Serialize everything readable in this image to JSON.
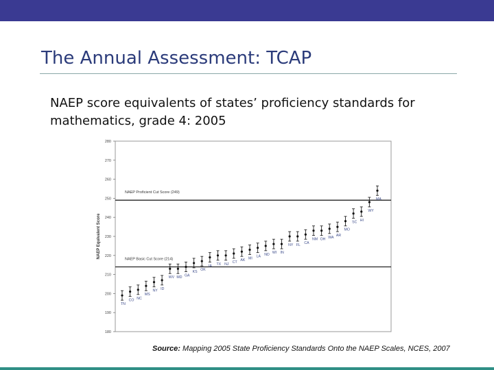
{
  "slide": {
    "title": "The Annual Assessment: TCAP",
    "subtitle": "NAEP score equivalents of states’ proficiency standards for mathematics, grade 4: 2005",
    "source_label": "Source:",
    "source_text": " Mapping 2005 State Proficiency Standards Onto the NAEP Scales, NCES, 2007"
  },
  "colors": {
    "top_bar": "#3a3a92",
    "bottom_bar": "#2f8f85",
    "title": "#2b3b7a"
  },
  "chart_data": {
    "type": "scatter",
    "title": "",
    "xlabel": "",
    "ylabel": "NAEP Equivalent Score",
    "ylim": [
      180,
      280
    ],
    "yticks": [
      180,
      190,
      200,
      210,
      220,
      230,
      240,
      250,
      260,
      270,
      280
    ],
    "grid": false,
    "reference_lines": [
      {
        "label": "NAEP Proficient Cut Score (249)",
        "value": 249
      },
      {
        "label": "NAEP Basic Cut Score (214)",
        "value": 214
      }
    ],
    "points": [
      {
        "state": "TN",
        "y": 199
      },
      {
        "state": "CO",
        "y": 201
      },
      {
        "state": "NC",
        "y": 202
      },
      {
        "state": "MS",
        "y": 204
      },
      {
        "state": "NY",
        "y": 206
      },
      {
        "state": "ID",
        "y": 207
      },
      {
        "state": "WV",
        "y": 213
      },
      {
        "state": "MD",
        "y": 213
      },
      {
        "state": "GA",
        "y": 214
      },
      {
        "state": "KS",
        "y": 216
      },
      {
        "state": "OK",
        "y": 217
      },
      {
        "state": "IA",
        "y": 219
      },
      {
        "state": "TX",
        "y": 220
      },
      {
        "state": "NJ",
        "y": 220
      },
      {
        "state": "CT",
        "y": 221
      },
      {
        "state": "AK",
        "y": 222
      },
      {
        "state": "MI",
        "y": 223
      },
      {
        "state": "LA",
        "y": 224
      },
      {
        "state": "ND",
        "y": 225
      },
      {
        "state": "WI",
        "y": 226
      },
      {
        "state": "IN",
        "y": 226
      },
      {
        "state": "NY",
        "y": 230
      },
      {
        "state": "FL",
        "y": 230
      },
      {
        "state": "CA",
        "y": 231
      },
      {
        "state": "NM",
        "y": 233
      },
      {
        "state": "OH",
        "y": 233
      },
      {
        "state": "WA",
        "y": 234
      },
      {
        "state": "AR",
        "y": 235
      },
      {
        "state": "MO",
        "y": 238
      },
      {
        "state": "SC",
        "y": 242
      },
      {
        "state": "HI",
        "y": 243
      },
      {
        "state": "WY",
        "y": 248
      },
      {
        "state": "MA",
        "y": 254
      }
    ],
    "error_bar_halfwidth": 2.5
  }
}
